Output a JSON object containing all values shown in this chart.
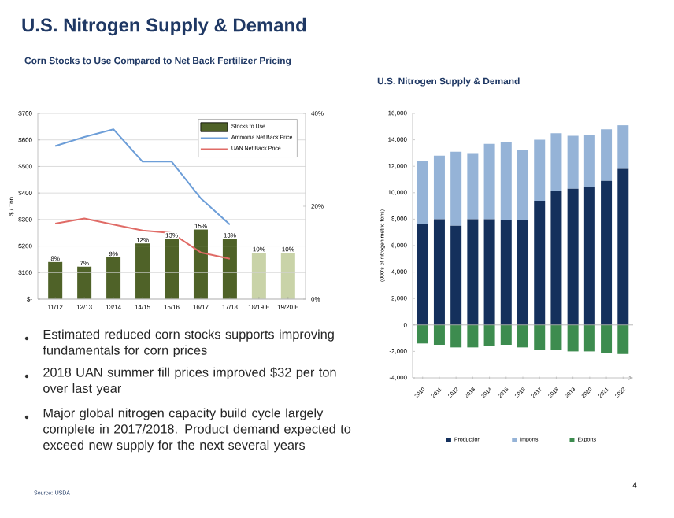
{
  "chart_data": [
    {
      "type": "bar",
      "title": "Corn Stocks to Use Compared to Net Back Fertilizer Pricing",
      "ylabel": "$ / Ton",
      "categories": [
        "11/12",
        "12/13",
        "13/14",
        "14/15",
        "15/16",
        "16/17",
        "17/18",
        "18/19 E",
        "19/20 E"
      ],
      "series": [
        {
          "name": "Stocks to Use",
          "type": "bar",
          "axis": "y2",
          "colors": [
            "#4f6228",
            "#4f6228",
            "#4f6228",
            "#4f6228",
            "#4f6228",
            "#4f6228",
            "#4f6228",
            "#c9d3a8",
            "#c9d3a8"
          ],
          "values": [
            8,
            7,
            9,
            12,
            13,
            15,
            13,
            10,
            10
          ],
          "value_labels": [
            "8%",
            "7%",
            "9%",
            "12%",
            "13%",
            "15%",
            "13%",
            "10%",
            "10%"
          ]
        },
        {
          "name": "Ammonia Net Back Price",
          "type": "line",
          "color": "#6d9ed8",
          "values": [
            577,
            611,
            640,
            518,
            518,
            380,
            281,
            null,
            null
          ]
        },
        {
          "name": "UAN Net Back Price",
          "type": "line",
          "color": "#e06b66",
          "values": [
            285,
            304,
            281,
            259,
            249,
            176,
            152,
            null,
            null
          ]
        }
      ],
      "ylim": [
        0,
        700
      ],
      "yticks": [
        {
          "value": 0,
          "label": "$-"
        },
        {
          "value": 100,
          "label": "$100"
        },
        {
          "value": 200,
          "label": "$200"
        },
        {
          "value": 300,
          "label": "$300"
        },
        {
          "value": 400,
          "label": "$400"
        },
        {
          "value": 500,
          "label": "$500"
        },
        {
          "value": 600,
          "label": "$600"
        },
        {
          "value": 700,
          "label": "$700"
        }
      ],
      "y2lim": [
        0,
        40
      ],
      "y2ticks": [
        {
          "value": 0,
          "label": "0%"
        },
        {
          "value": 20,
          "label": "20%"
        },
        {
          "value": 40,
          "label": "40%"
        }
      ],
      "grid": "y",
      "legend": "top right",
      "marker": "none"
    },
    {
      "type": "bar",
      "stacked": true,
      "title": "U.S. Nitrogen Supply & Demand",
      "ylabel": "(000's of nitrogen metric tons)",
      "categories": [
        "2010",
        "2011",
        "2012",
        "2013",
        "2014",
        "2015",
        "2016",
        "2017",
        "2018",
        "2019",
        "2020",
        "2021",
        "2022"
      ],
      "series": [
        {
          "name": "Production",
          "color": "#14305c",
          "values": [
            7600,
            8000,
            7500,
            8000,
            8000,
            7900,
            7900,
            9400,
            10100,
            10300,
            10400,
            10900,
            11800
          ]
        },
        {
          "name": "Imports",
          "color": "#95b3d7",
          "values": [
            4800,
            4800,
            5600,
            5000,
            5700,
            5900,
            5300,
            4600,
            4400,
            4000,
            4000,
            3900,
            3300
          ]
        },
        {
          "name": "Exports",
          "color": "#3d8c4f",
          "values": [
            -1400,
            -1500,
            -1700,
            -1700,
            -1600,
            -1500,
            -1700,
            -1900,
            -1900,
            -2000,
            -2000,
            -2100,
            -2200
          ]
        }
      ],
      "ylim": [
        -4000,
        16000
      ],
      "yticks": [
        {
          "value": -4000,
          "label": "-4,000"
        },
        {
          "value": -2000,
          "label": "-2,000"
        },
        {
          "value": 0,
          "label": "0"
        },
        {
          "value": 2000,
          "label": "2,000"
        },
        {
          "value": 4000,
          "label": "4,000"
        },
        {
          "value": 6000,
          "label": "6,000"
        },
        {
          "value": 8000,
          "label": "8,000"
        },
        {
          "value": 10000,
          "label": "10,000"
        },
        {
          "value": 12000,
          "label": "12,000"
        },
        {
          "value": 14000,
          "label": "14,000"
        },
        {
          "value": 16000,
          "label": "16,000"
        }
      ],
      "legend": "bottom"
    },
    {
      "type": "other",
      "title": "U.S. Nitrogen Supply & Demand",
      "annotations": [
        "Estimated reduced corn stocks supports improving fundamentals for corn prices",
        "2018 UAN summer fill prices improved $32 per ton over last year",
        "Major global nitrogen capacity build cycle largely complete in 2017/2018.  Product demand expected to exceed new supply for the next several years",
        "Source: USDA",
        "4"
      ]
    }
  ]
}
